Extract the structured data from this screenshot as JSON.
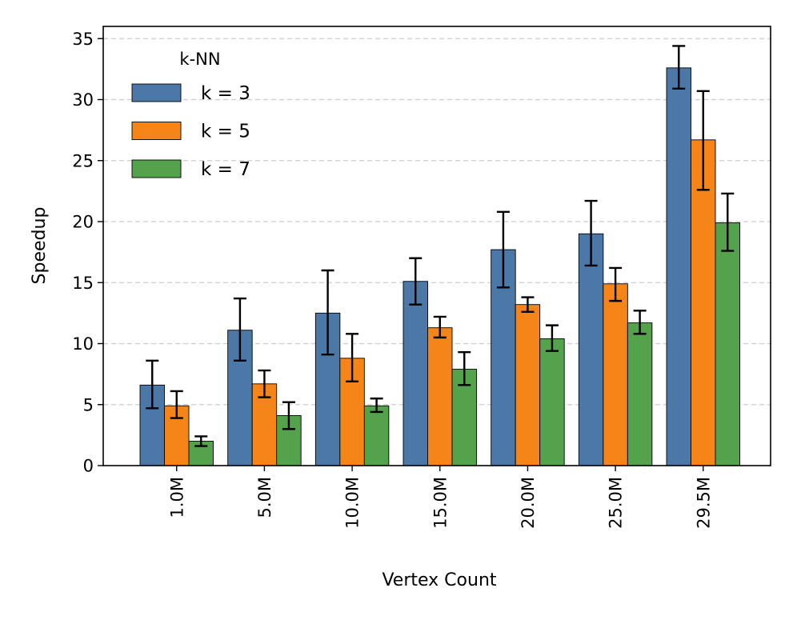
{
  "chart_data": {
    "type": "bar",
    "title": "",
    "xlabel": "Vertex Count",
    "ylabel": "Speedup",
    "categories": [
      "1.0M",
      "5.0M",
      "10.0M",
      "15.0M",
      "20.0M",
      "25.0M",
      "29.5M"
    ],
    "ylim": [
      0,
      36
    ],
    "yticks": [
      0,
      5,
      10,
      15,
      20,
      25,
      30,
      35
    ],
    "grid": "y-dashed",
    "legend": {
      "title": "k-NN",
      "placement": "upper-left"
    },
    "series": [
      {
        "name": "k = 3",
        "color": "#4c78a8",
        "values": [
          6.6,
          11.1,
          12.5,
          15.1,
          17.7,
          19.0,
          32.6
        ],
        "err_low": [
          4.7,
          8.6,
          9.1,
          13.2,
          14.6,
          16.4,
          30.9
        ],
        "err_high": [
          8.6,
          13.7,
          16.0,
          17.0,
          20.8,
          21.7,
          34.4
        ]
      },
      {
        "name": "k = 5",
        "color": "#f58518",
        "values": [
          4.9,
          6.7,
          8.8,
          11.3,
          13.2,
          14.9,
          26.7
        ],
        "err_low": [
          3.9,
          5.6,
          6.9,
          10.5,
          12.6,
          13.5,
          22.6
        ],
        "err_high": [
          6.1,
          7.8,
          10.8,
          12.2,
          13.8,
          16.2,
          30.7
        ]
      },
      {
        "name": "k = 7",
        "color": "#54a24b",
        "values": [
          2.0,
          4.1,
          4.9,
          7.9,
          10.4,
          11.7,
          19.9
        ],
        "err_low": [
          1.6,
          3.0,
          4.4,
          6.6,
          9.4,
          10.8,
          17.6
        ],
        "err_high": [
          2.4,
          5.2,
          5.5,
          9.3,
          11.5,
          12.7,
          22.3
        ]
      }
    ]
  }
}
